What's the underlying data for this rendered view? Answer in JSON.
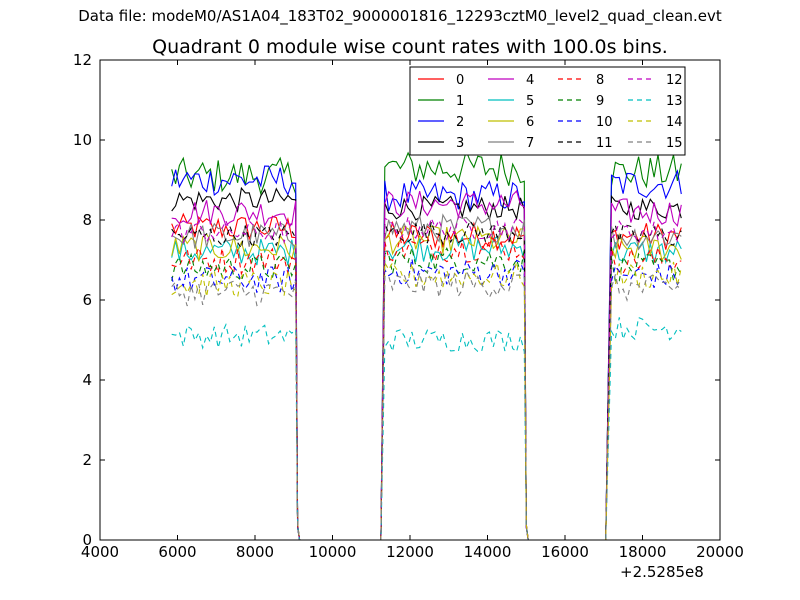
{
  "figure": {
    "suptitle": "Data file: modeM0/AS1A04_183T02_9000001816_12293cztM0_level2_quad_clean.evt",
    "title": "Quadrant 0 module wise count rates with 100.0s bins.",
    "x_offset_label": "+2.5285e8"
  },
  "chart_data": {
    "type": "line",
    "title": "Quadrant 0 module wise count rates with 100.0s bins.",
    "xlabel": "",
    "ylabel": "",
    "xlim": [
      4000,
      20000
    ],
    "ylim": [
      0,
      12
    ],
    "x_offset": 252850000,
    "x_ticks": [
      4000,
      6000,
      8000,
      10000,
      12000,
      14000,
      16000,
      18000,
      20000
    ],
    "y_ticks": [
      0,
      2,
      4,
      6,
      8,
      10,
      12
    ],
    "grid": false,
    "legend": {
      "placement": "top-right",
      "columns": 4
    },
    "segments": [
      {
        "x_start": 5850,
        "x_end": 9050
      },
      {
        "x_start": 11350,
        "x_end": 14950
      },
      {
        "x_start": 17200,
        "x_end": 19050
      }
    ],
    "gaps": [
      {
        "x_drop": 9150,
        "x_rise": 11250
      },
      {
        "x_drop": 15050,
        "x_rise": 17100
      }
    ],
    "series": [
      {
        "name": "0",
        "color": "#ff0000",
        "dashed": false,
        "segment_levels": [
          7.8,
          7.6,
          7.6
        ],
        "noise": 0.35
      },
      {
        "name": "1",
        "color": "#008000",
        "dashed": false,
        "segment_levels": [
          9.1,
          9.3,
          9.2
        ],
        "noise": 0.45
      },
      {
        "name": "2",
        "color": "#0000ff",
        "dashed": false,
        "segment_levels": [
          9.0,
          8.6,
          8.9
        ],
        "noise": 0.4
      },
      {
        "name": "3",
        "color": "#000000",
        "dashed": false,
        "segment_levels": [
          8.5,
          8.3,
          8.3
        ],
        "noise": 0.3
      },
      {
        "name": "4",
        "color": "#bf00bf",
        "dashed": false,
        "segment_levels": [
          8.2,
          8.4,
          8.2
        ],
        "noise": 0.35
      },
      {
        "name": "5",
        "color": "#00bfbf",
        "dashed": false,
        "segment_levels": [
          7.2,
          7.3,
          7.2
        ],
        "noise": 0.35
      },
      {
        "name": "6",
        "color": "#bfbf00",
        "dashed": false,
        "segment_levels": [
          7.3,
          7.5,
          7.3
        ],
        "noise": 0.35
      },
      {
        "name": "7",
        "color": "#808080",
        "dashed": false,
        "segment_levels": [
          7.6,
          7.8,
          7.6
        ],
        "noise": 0.35
      },
      {
        "name": "8",
        "color": "#ff0000",
        "dashed": true,
        "segment_levels": [
          7.0,
          7.3,
          7.0
        ],
        "noise": 0.35
      },
      {
        "name": "9",
        "color": "#008000",
        "dashed": true,
        "segment_levels": [
          6.8,
          7.0,
          6.8
        ],
        "noise": 0.35
      },
      {
        "name": "10",
        "color": "#0000ff",
        "dashed": true,
        "segment_levels": [
          6.5,
          6.7,
          6.6
        ],
        "noise": 0.35
      },
      {
        "name": "11",
        "color": "#000000",
        "dashed": true,
        "segment_levels": [
          7.6,
          7.7,
          7.6
        ],
        "noise": 0.3
      },
      {
        "name": "12",
        "color": "#bf00bf",
        "dashed": true,
        "segment_levels": [
          7.7,
          7.8,
          7.7
        ],
        "noise": 0.3
      },
      {
        "name": "13",
        "color": "#00bfbf",
        "dashed": true,
        "segment_levels": [
          5.1,
          5.0,
          5.3
        ],
        "noise": 0.3
      },
      {
        "name": "14",
        "color": "#bfbf00",
        "dashed": true,
        "segment_levels": [
          6.4,
          6.6,
          6.6
        ],
        "noise": 0.35
      },
      {
        "name": "15",
        "color": "#808080",
        "dashed": true,
        "segment_levels": [
          6.2,
          6.4,
          6.3
        ],
        "noise": 0.35
      }
    ]
  }
}
